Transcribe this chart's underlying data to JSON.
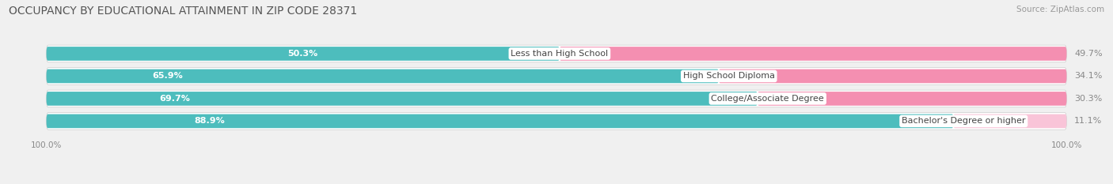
{
  "title": "OCCUPANCY BY EDUCATIONAL ATTAINMENT IN ZIP CODE 28371",
  "source": "Source: ZipAtlas.com",
  "categories": [
    "Less than High School",
    "High School Diploma",
    "College/Associate Degree",
    "Bachelor's Degree or higher"
  ],
  "owner_values": [
    50.3,
    65.9,
    69.7,
    88.9
  ],
  "renter_values": [
    49.7,
    34.1,
    30.3,
    11.1
  ],
  "owner_color": "#4dbdbd",
  "renter_color": "#f48fb1",
  "renter_color_light": "#f9c4d8",
  "background_color": "#f0f0f0",
  "row_bg_color": "#e8e8e8",
  "row_border_color": "#d8d8d8",
  "title_fontsize": 10,
  "source_fontsize": 7.5,
  "label_fontsize": 8,
  "pct_fontsize": 8,
  "axis_label_fontsize": 7.5,
  "legend_fontsize": 8,
  "bar_height": 0.62,
  "figsize": [
    14.06,
    2.33
  ],
  "dpi": 100
}
